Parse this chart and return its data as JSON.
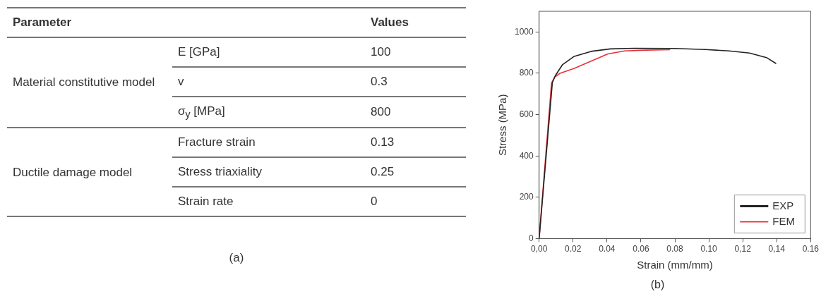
{
  "chart_data": [
    {
      "type": "other",
      "annotations": [
        "Parameter",
        "Values",
        "Material constitutive model",
        "E [GPa]",
        "100",
        "v",
        "0.3",
        "σ$_{y}$ [MPa]",
        "800",
        "Ductile damage model",
        "Fracture strain",
        "0.13",
        "Stress triaxiality",
        "0.25",
        "Strain rate",
        "0",
        "(a)"
      ]
    },
    {
      "type": "line",
      "xlabel": "Strain (mm/mm)",
      "ylabel": "Stress (MPa)",
      "annotations": [
        "(b)"
      ],
      "xlim": [
        0,
        0.16
      ],
      "xticks": [
        {
          "value": 0,
          "label": "0,00"
        },
        {
          "value": 0.02,
          "label": "0.02"
        },
        {
          "value": 0.04,
          "label": "0.04"
        },
        {
          "value": 0.06,
          "label": "0.06"
        },
        {
          "value": 0.08,
          "label": "0.08"
        },
        {
          "value": 0.1,
          "label": "0.10"
        },
        {
          "value": 0.12,
          "label": "0,12"
        },
        {
          "value": 0.14,
          "label": "0,14"
        },
        {
          "value": 0.16,
          "label": "0.16"
        }
      ],
      "ylim": [
        0,
        1100
      ],
      "yticks": [
        0,
        200,
        400,
        600,
        800,
        1000
      ],
      "grid": false,
      "legend": "bottom right",
      "marker": "none",
      "line_style": "solid",
      "series": [
        {
          "name": "EXP",
          "color": "#222222",
          "x": [
            0,
            0.0078,
            0.0095,
            0.0137,
            0.0207,
            0.0306,
            0.0419,
            0.056,
            0.08,
            0.098,
            0.112,
            0.124,
            0.134,
            0.1397
          ],
          "values": [
            0,
            755,
            788,
            841,
            882,
            906,
            918,
            921,
            920,
            915,
            908,
            898,
            876,
            847
          ]
        },
        {
          "name": "FEM",
          "color": "#e8303a",
          "x": [
            0,
            0.0073,
            0.0092,
            0.0123,
            0.0207,
            0.0306,
            0.0405,
            0.0504,
            0.063,
            0.0772
          ],
          "values": [
            0,
            753,
            782,
            800,
            824,
            859,
            894,
            908,
            912,
            914
          ]
        }
      ]
    }
  ]
}
